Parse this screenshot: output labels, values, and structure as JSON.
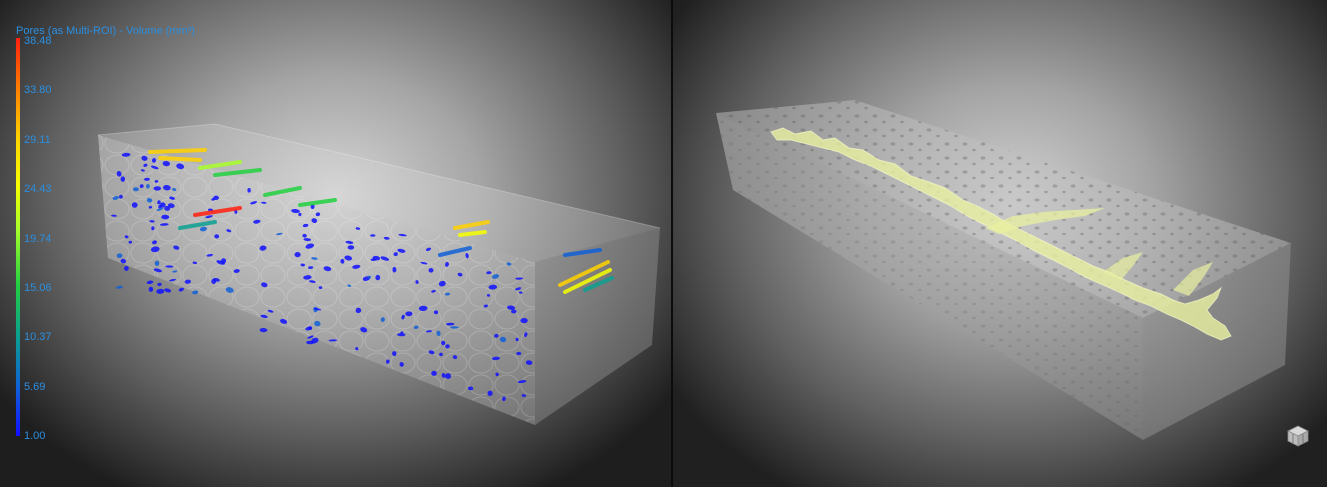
{
  "left_view": {
    "legend": {
      "title": "Pores (as Multi-ROI) - Volume (mm³)",
      "ticks": [
        "38.48",
        "33.80",
        "29.11",
        "24.43",
        "19.74",
        "15.06",
        "10.37",
        "5.69",
        "1.00"
      ],
      "colors": [
        "#ff2010",
        "#ff7a00",
        "#ffd200",
        "#f7ff00",
        "#a8ff2a",
        "#22d040",
        "#0aa090",
        "#1060d8",
        "#1010ff"
      ]
    }
  },
  "right_view": {
    "view_cube": "view-cube-icon",
    "highlight_color": "#e8f0a0"
  }
}
